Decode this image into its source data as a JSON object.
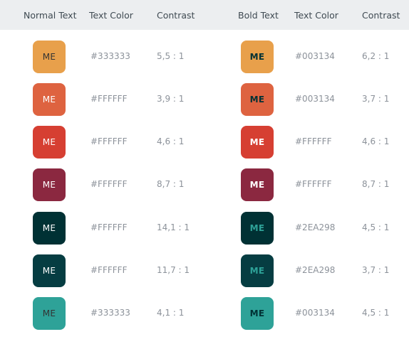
{
  "headers": {
    "normal_text": "Normal Text",
    "text_color_left": "Text Color",
    "contrast_left": "Contrast",
    "bold_text": "Bold Text",
    "text_color_right": "Text Color",
    "contrast_right": "Contrast"
  },
  "rows": [
    {
      "normal": {
        "label": "ME",
        "bg": "#E8A04B",
        "fg": "#333333",
        "color_text": "#333333",
        "contrast": "5,5 : 1"
      },
      "bold": {
        "label": "ME",
        "bg": "#E8A04B",
        "fg": "#003134",
        "color_text": "#003134",
        "contrast": "6,2 : 1"
      }
    },
    {
      "normal": {
        "label": "ME",
        "bg": "#DE6340",
        "fg": "#FFFFFF",
        "color_text": "#FFFFFF",
        "contrast": "3,9 : 1"
      },
      "bold": {
        "label": "ME",
        "bg": "#DE6340",
        "fg": "#003134",
        "color_text": "#003134",
        "contrast": "3,7 : 1"
      }
    },
    {
      "normal": {
        "label": "ME",
        "bg": "#D63F32",
        "fg": "#FFFFFF",
        "color_text": "#FFFFFF",
        "contrast": "4,6 : 1"
      },
      "bold": {
        "label": "ME",
        "bg": "#D63F32",
        "fg": "#FFFFFF",
        "color_text": "#FFFFFF",
        "contrast": "4,6 : 1"
      }
    },
    {
      "normal": {
        "label": "ME",
        "bg": "#8B2840",
        "fg": "#FFFFFF",
        "color_text": "#FFFFFF",
        "contrast": "8,7 : 1"
      },
      "bold": {
        "label": "ME",
        "bg": "#8B2840",
        "fg": "#FFFFFF",
        "color_text": "#FFFFFF",
        "contrast": "8,7 : 1"
      }
    },
    {
      "normal": {
        "label": "ME",
        "bg": "#003134",
        "fg": "#FFFFFF",
        "color_text": "#FFFFFF",
        "contrast": "14,1 : 1"
      },
      "bold": {
        "label": "ME",
        "bg": "#003134",
        "fg": "#2EA298",
        "color_text": "#2EA298",
        "contrast": "4,5 : 1"
      }
    },
    {
      "normal": {
        "label": "ME",
        "bg": "#063D42",
        "fg": "#FFFFFF",
        "color_text": "#FFFFFF",
        "contrast": "11,7 : 1"
      },
      "bold": {
        "label": "ME",
        "bg": "#063D42",
        "fg": "#2EA298",
        "color_text": "#2EA298",
        "contrast": "3,7 : 1"
      }
    },
    {
      "normal": {
        "label": "ME",
        "bg": "#2EA298",
        "fg": "#333333",
        "color_text": "#333333",
        "contrast": "4,1 : 1"
      },
      "bold": {
        "label": "ME",
        "bg": "#2EA298",
        "fg": "#003134",
        "color_text": "#003134",
        "contrast": "4,5 : 1"
      }
    }
  ]
}
